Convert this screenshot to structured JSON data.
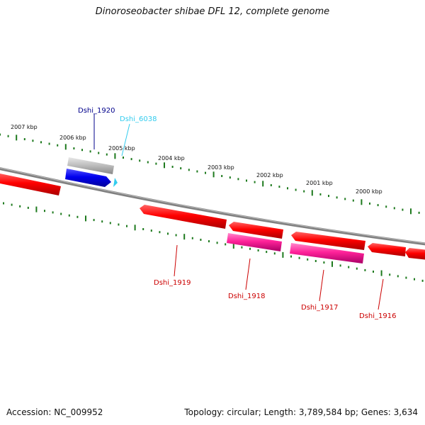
{
  "title": "Dinoroseobacter shibae DFL 12, complete genome",
  "footer": {
    "accession": "Accession: NC_009952",
    "summary": "Topology: circular; Length: 3,789,584 bp; Genes: 3,634"
  },
  "scale_labels": [
    "2007 kbp",
    "2006 kbp",
    "2005 kbp",
    "2004 kbp",
    "2003 kbp",
    "2002 kbp",
    "2001 kbp",
    "2000 kbp"
  ],
  "genes": [
    {
      "name": "Dshi_1920",
      "color": "#00008b"
    },
    {
      "name": "Dshi_6038",
      "color": "#33ccee"
    },
    {
      "name": "Dshi_1919",
      "color": "#cc0000"
    },
    {
      "name": "Dshi_1918",
      "color": "#cc0000"
    },
    {
      "name": "Dshi_1917",
      "color": "#cc0000"
    },
    {
      "name": "Dshi_1916",
      "color": "#cc0000"
    }
  ],
  "colors": {
    "backbone": "#808080",
    "tick": "#1e7a1e",
    "cds_forward": "#ff0000",
    "cds_reverse": "#ff3399",
    "rna": "#0000ee",
    "gene_track": "#c0c0c0"
  }
}
